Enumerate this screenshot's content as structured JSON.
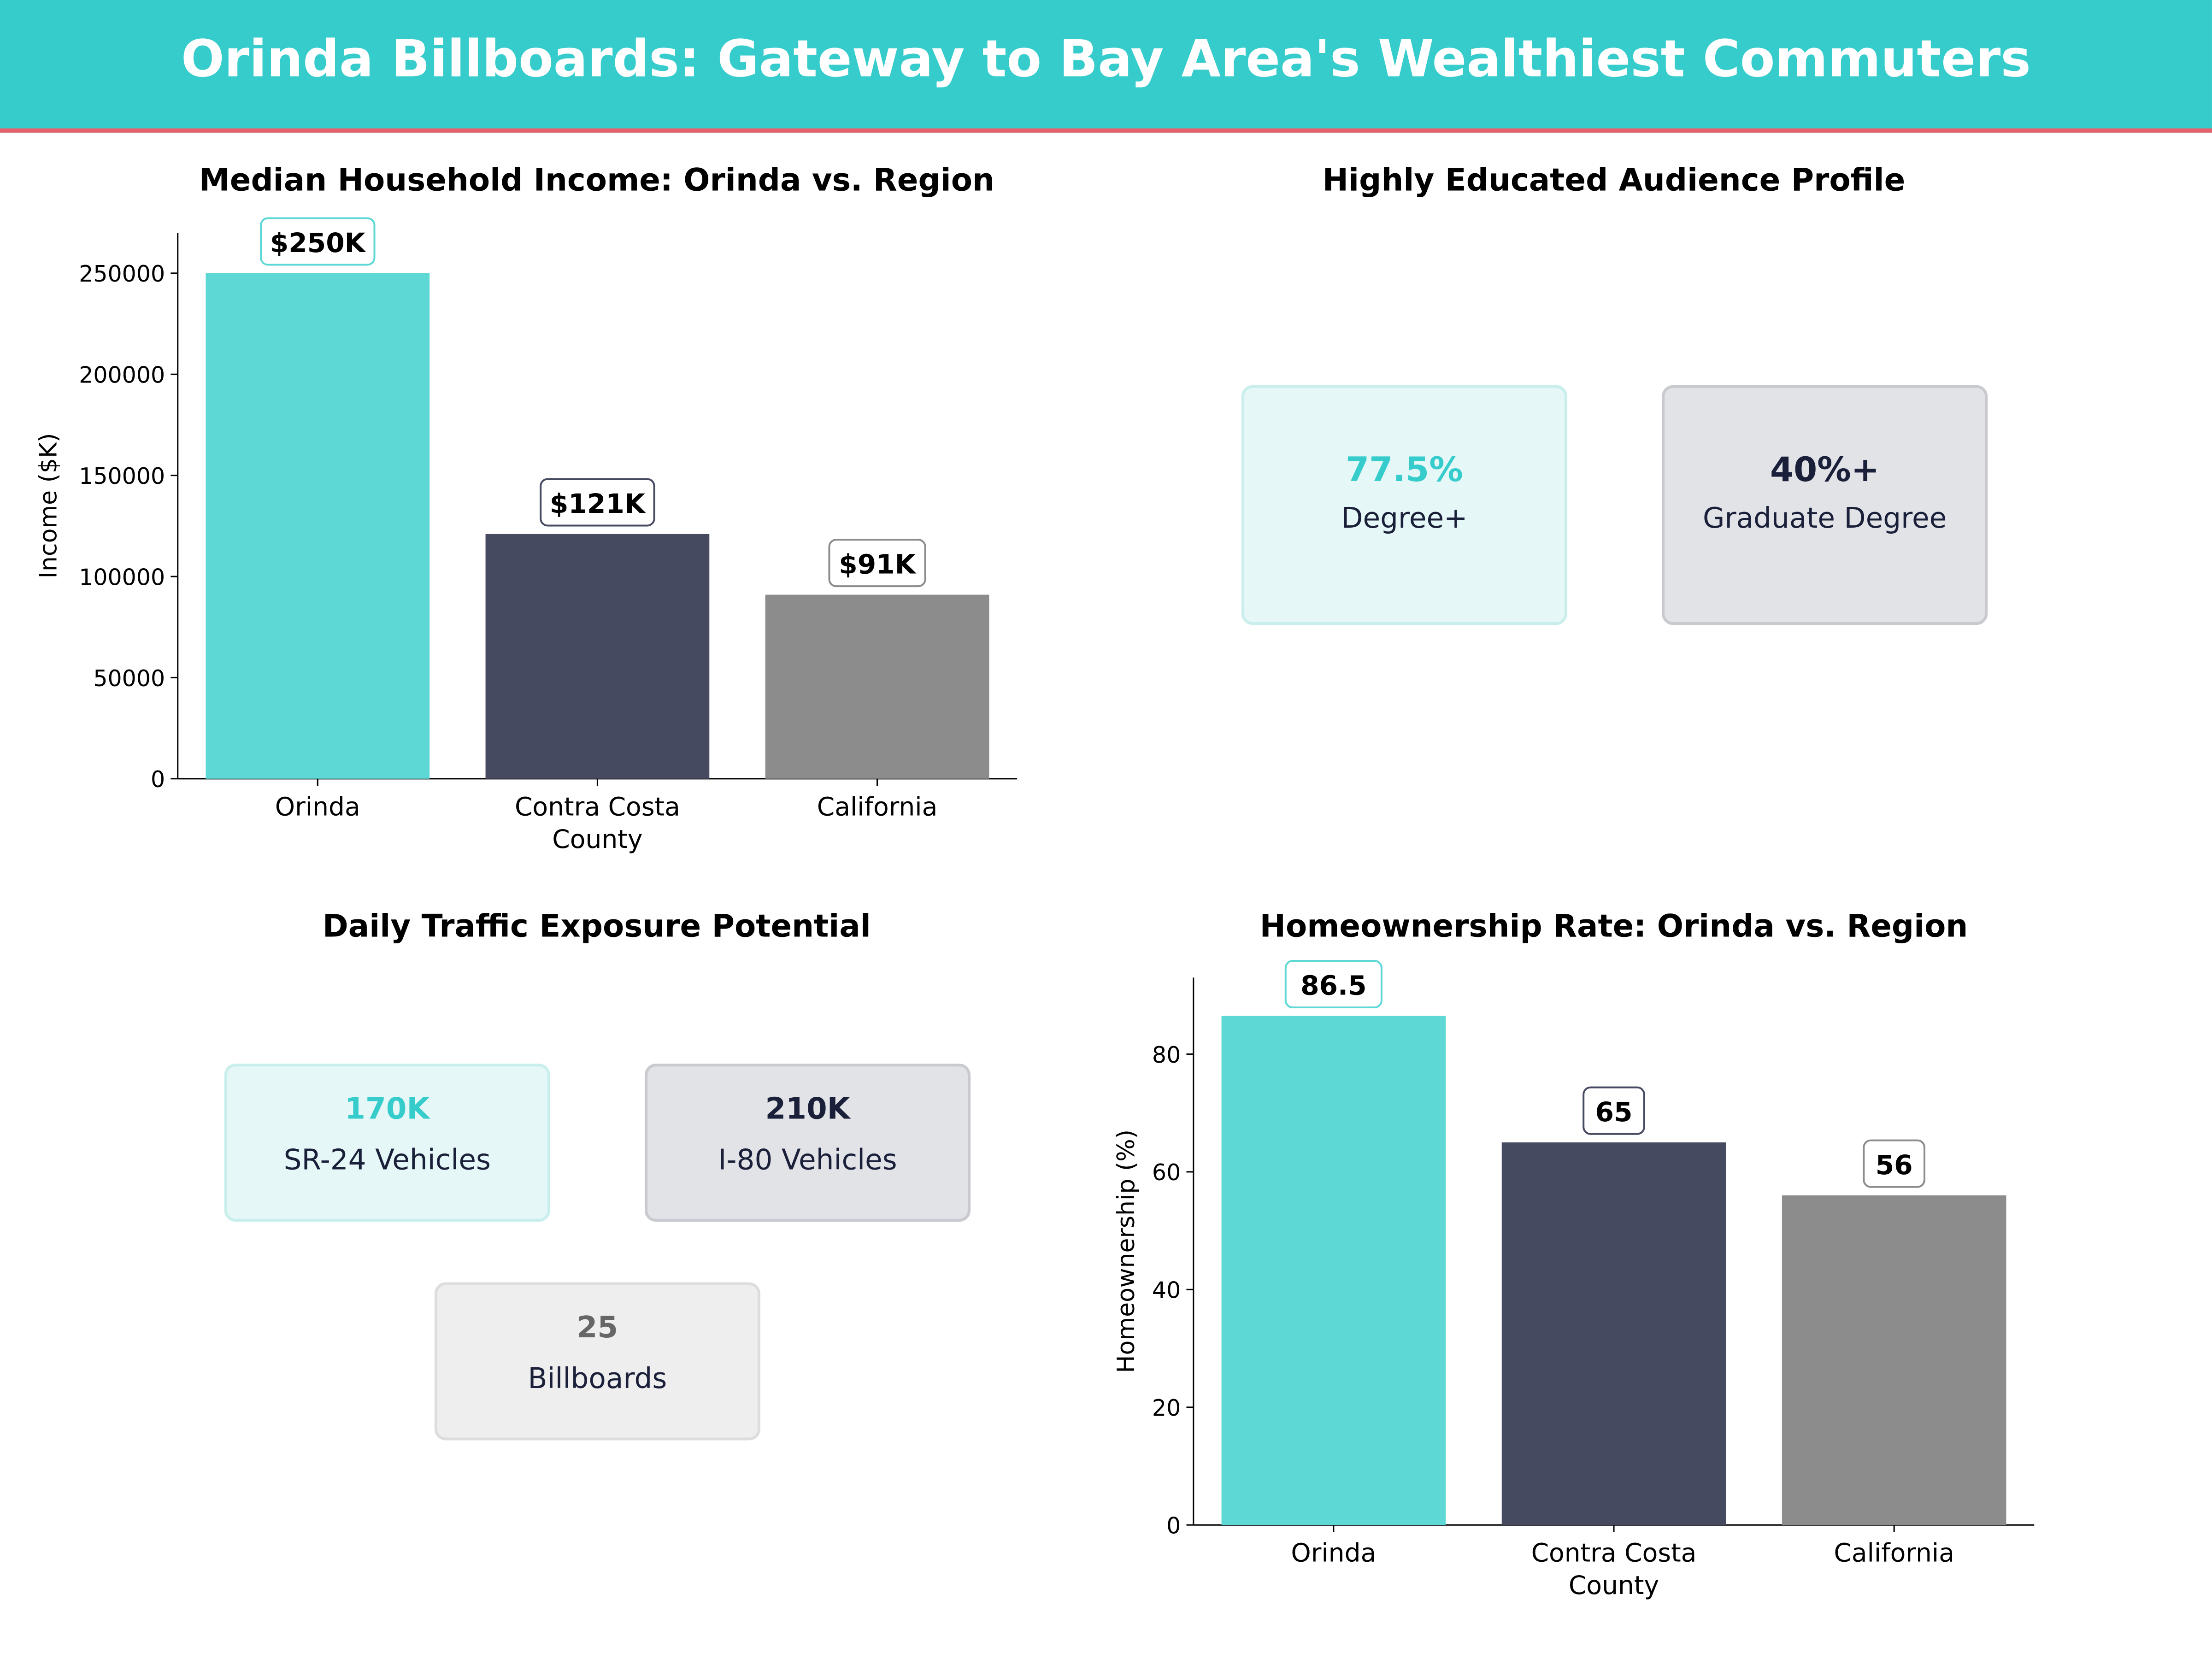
{
  "title": "Orinda Billboards: Gateway to Bay Area's Wealthiest Commuters",
  "colors": {
    "header": "#36cccc",
    "accent_line": "#e8606a",
    "teal": "#5dd8d4",
    "navy": "#464a60",
    "gray": "#8c8c8c"
  },
  "chart_data": [
    {
      "type": "bar",
      "title": "Median Household Income: Orinda vs. Region",
      "categories": [
        "Orinda",
        "Contra Costa County",
        "California"
      ],
      "category_lines": [
        [
          "Orinda"
        ],
        [
          "Contra Costa",
          "County"
        ],
        [
          "California"
        ]
      ],
      "values": [
        250000,
        121000,
        91000
      ],
      "data_labels": [
        "$250K",
        "$121K",
        "$91K"
      ],
      "xlabel": "",
      "ylabel": "Income ($K)",
      "ylim": [
        0,
        270000
      ],
      "yticks": [
        0,
        50000,
        100000,
        150000,
        200000,
        250000
      ],
      "grid": false
    },
    {
      "type": "bar",
      "title": "Homeownership Rate: Orinda vs. Region",
      "categories": [
        "Orinda",
        "Contra Costa County",
        "California"
      ],
      "category_lines": [
        [
          "Orinda"
        ],
        [
          "Contra Costa",
          "County"
        ],
        [
          "California"
        ]
      ],
      "values": [
        86.5,
        65,
        56
      ],
      "data_labels": [
        "86.5",
        "65",
        "56"
      ],
      "xlabel": "",
      "ylabel": "Homeownership (%)",
      "ylim": [
        0,
        93
      ],
      "yticks": [
        0,
        20,
        40,
        60,
        80
      ],
      "grid": false
    }
  ],
  "education": {
    "title": "Highly Educated Audience Profile",
    "cards": [
      {
        "value": "77.5%",
        "label": "Degree+"
      },
      {
        "value": "40%+",
        "label": "Graduate Degree"
      }
    ]
  },
  "traffic": {
    "title": "Daily Traffic Exposure Potential",
    "cards": [
      {
        "value": "170K",
        "label": "SR-24  Vehicles"
      },
      {
        "value": "210K",
        "label": "I-80  Vehicles"
      },
      {
        "value": "25",
        "label": "Billboards"
      }
    ]
  }
}
